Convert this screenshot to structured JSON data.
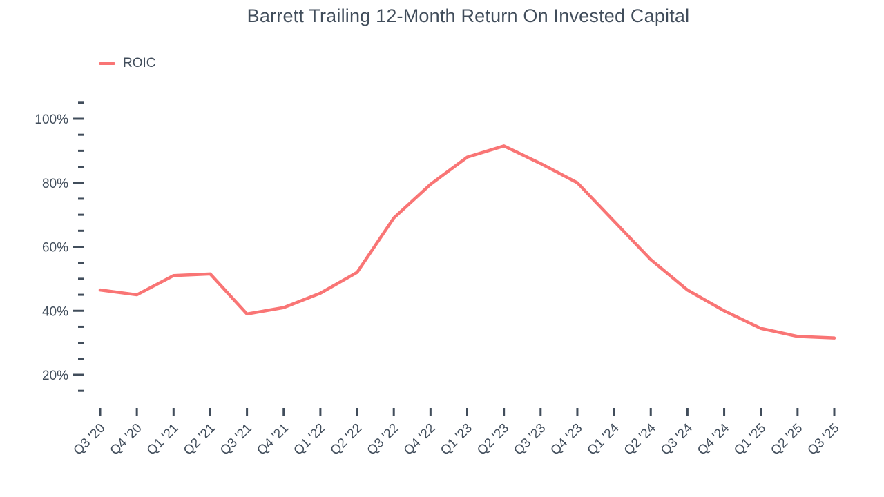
{
  "title": "Barrett Trailing 12-Month Return On Invested Capital",
  "legend": {
    "items": [
      {
        "label": "ROIC",
        "color": "#F97575"
      }
    ]
  },
  "chart_data": {
    "type": "line",
    "title": "Barrett Trailing 12-Month Return On Invested Capital",
    "xlabel": "",
    "ylabel": "",
    "categories": [
      "Q3 '20",
      "Q4 '20",
      "Q1 '21",
      "Q2 '21",
      "Q3 '21",
      "Q4 '21",
      "Q1 '22",
      "Q2 '22",
      "Q3 '22",
      "Q4 '22",
      "Q1 '23",
      "Q2 '23",
      "Q3 '23",
      "Q4 '23",
      "Q1 '24",
      "Q2 '24",
      "Q3 '24",
      "Q4 '24",
      "Q1 '25",
      "Q2 '25",
      "Q3 '25"
    ],
    "series": [
      {
        "name": "ROIC",
        "values": [
          46.5,
          45,
          51,
          51.5,
          39,
          41,
          45.5,
          52,
          69,
          79.5,
          88,
          91.5,
          86,
          80,
          68,
          56,
          46.5,
          40,
          34.5,
          32,
          31.5
        ]
      }
    ],
    "ylim": [
      15,
      105
    ],
    "y_major_ticks": [
      20,
      40,
      60,
      80,
      100
    ],
    "y_minor_tick_step": 5,
    "y_tick_format": "percent",
    "grid": false,
    "legend_position": "top-left",
    "line_color": "#F97575",
    "text_color": "#414D5B"
  }
}
